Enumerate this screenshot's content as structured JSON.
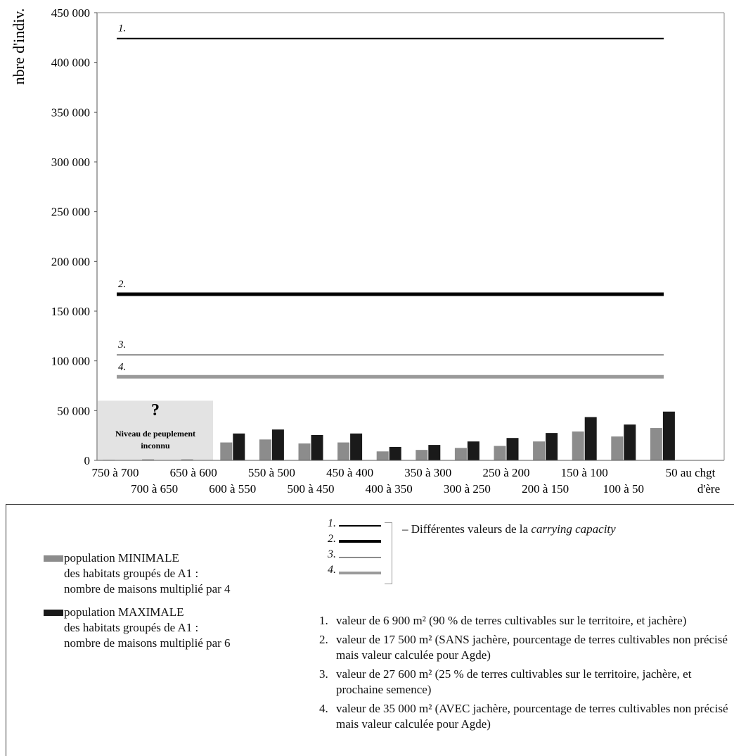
{
  "chart_data": {
    "type": "bar",
    "ylabel": "nbre d'indiv.",
    "ylim": [
      0,
      450000
    ],
    "yticks": [
      "0",
      "50 000",
      "100 000",
      "150 000",
      "200 000",
      "250 000",
      "300 000",
      "350 000",
      "400 000",
      "450 000"
    ],
    "grid": false,
    "categories": [
      "750 à 700",
      "700 à 650",
      "650 à 600",
      "600 à 550",
      "550 à 500",
      "500 à 450",
      "450 à 400",
      "400 à 350",
      "350 à 300",
      "300 à 250",
      "250 à 200",
      "200 à 150",
      "150 à 100",
      "100 à 50",
      "50 au chgt d'ère"
    ],
    "xtick_rows": {
      "row1": [
        "750 à 700",
        "650 à 600",
        "550 à 500",
        "450 à 400",
        "350 à 300",
        "250 à 200",
        "150 à 100",
        "50 au chgt"
      ],
      "row2": [
        "700 à 650",
        "600 à 550",
        "500 à 450",
        "400 à 350",
        "300 à 250",
        "200 à 150",
        "100 à 50",
        "d'ère"
      ]
    },
    "series": [
      {
        "name": "population MINIMALE des habitats groupés de A1 : nombre de maisons multiplié par 4",
        "color": "#8c8c8c",
        "values": [
          500,
          1000,
          1000,
          18000,
          21000,
          17000,
          18000,
          9000,
          10500,
          12500,
          14500,
          19000,
          29000,
          24000,
          32500
        ]
      },
      {
        "name": "population MAXIMALE des habitats groupés de A1 : nombre de maisons multiplié par 6",
        "color": "#1a1a1a",
        "values": [
          null,
          null,
          null,
          27000,
          31000,
          25500,
          27000,
          13500,
          15500,
          19000,
          22500,
          27500,
          43500,
          36000,
          49000
        ]
      }
    ],
    "reference_lines": [
      {
        "key": "1.",
        "value": 424000,
        "color": "#000000",
        "width": 2
      },
      {
        "key": "2.",
        "value": 167000,
        "color": "#000000",
        "width": 5
      },
      {
        "key": "3.",
        "value": 106000,
        "color": "#8c8c8c",
        "width": 2
      },
      {
        "key": "4.",
        "value": 84000,
        "color": "#9a9a9a",
        "width": 5
      }
    ],
    "annotation": {
      "question_mark": "?",
      "line1": "Niveau de peuplement",
      "line2": "inconnu",
      "x_range": [
        "750 à 700",
        "650 à 600"
      ],
      "y_range": [
        0,
        60000
      ],
      "fill": "#e3e3e3"
    }
  },
  "legend": {
    "min_label": [
      "population MINIMALE",
      "des habitats groupés de A1 :",
      "nombre de maisons multiplié par 4"
    ],
    "max_label": [
      "population MAXIMALE",
      "des habitats groupés de A1 :",
      "nombre de maisons multiplié par 6"
    ],
    "line_keys": [
      "1.",
      "2.",
      "3.",
      "4."
    ],
    "capacity_prefix": "Différentes valeurs de la ",
    "capacity_emph": "carrying capacity",
    "notes": [
      {
        "num": "1.",
        "text": "valeur de 6 900 m² (90 % de terres cultivables sur le territoire, et jachère)"
      },
      {
        "num": "2.",
        "text": "valeur de 17 500 m² (SANS jachère, pourcentage de terres cultivables non précisé mais valeur calculée pour Agde)"
      },
      {
        "num": "3.",
        "text": "valeur de 27 600 m²  (25 % de terres cultivables sur le territoire, jachère, et prochaine semence)"
      },
      {
        "num": "4.",
        "text": "valeur de 35 000 m² (AVEC jachère, pourcentage de terres cultivables non précisé mais valeur calculée pour Agde)"
      }
    ]
  }
}
